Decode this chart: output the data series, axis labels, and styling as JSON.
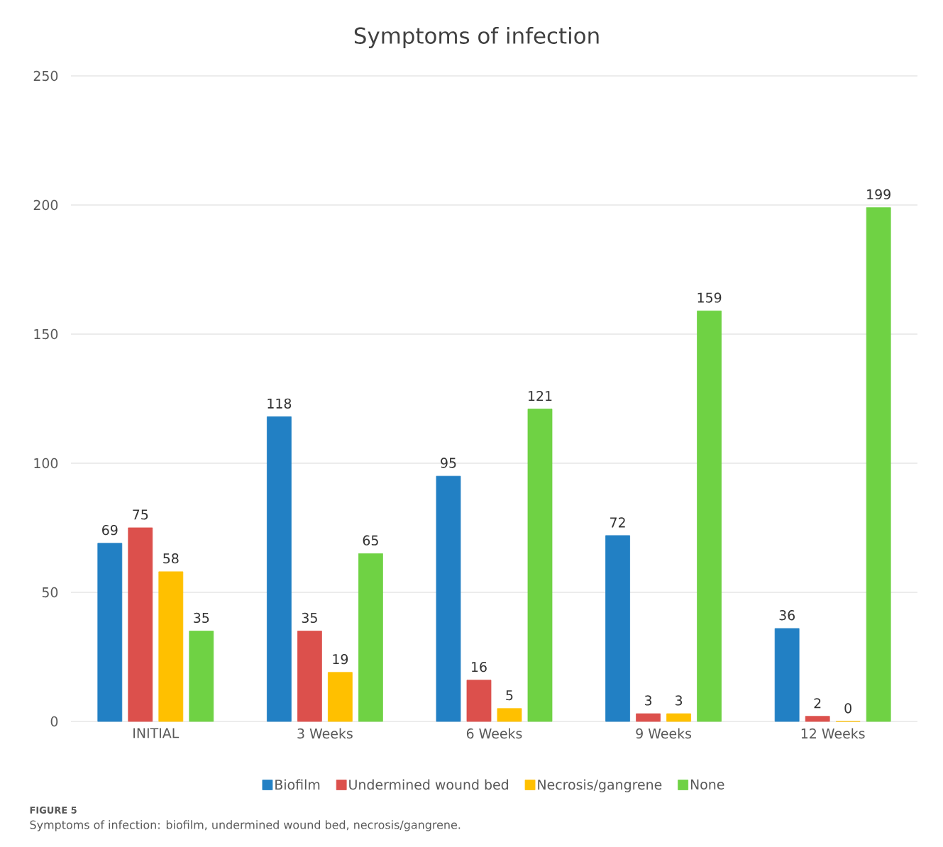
{
  "chart_data": {
    "type": "bar",
    "title": "Symptoms of infection",
    "categories": [
      "INITIAL",
      "3 Weeks",
      "6 Weeks",
      "9 Weeks",
      "12 Weeks"
    ],
    "series": [
      {
        "name": "Biofilm",
        "color": "#2280c4",
        "values": [
          69,
          118,
          95,
          72,
          36
        ]
      },
      {
        "name": "Undermined wound bed",
        "color": "#dc504c",
        "values": [
          75,
          35,
          16,
          3,
          2
        ]
      },
      {
        "name": "Necrosis/gangrene",
        "color": "#ffc000",
        "values": [
          58,
          19,
          5,
          3,
          0
        ]
      },
      {
        "name": "None",
        "color": "#6fd244",
        "values": [
          35,
          65,
          121,
          159,
          199
        ]
      }
    ],
    "ylim": [
      0,
      250
    ],
    "yticks": [
      0,
      50,
      100,
      150,
      200,
      250
    ],
    "grid": "y",
    "legend": "bottom",
    "data_labels": true,
    "annotations": [
      "FIGURE 5",
      "Symptoms of infection: biofilm, undermined wound bed, necrosis/gangrene."
    ]
  }
}
